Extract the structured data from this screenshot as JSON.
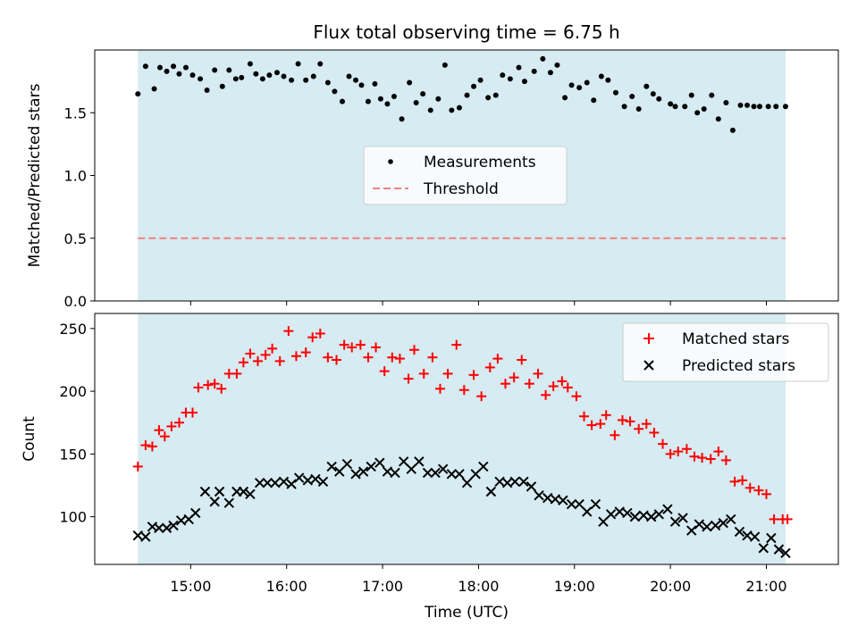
{
  "chart_data": [
    {
      "type": "scatter",
      "title": "Flux total observing time = 6.75 h",
      "xlabel": "",
      "ylabel": "Matched/Predicted stars",
      "xlim_hours": [
        14.0,
        21.75
      ],
      "ylim": [
        0.0,
        2.0
      ],
      "yticks": [
        0.0,
        0.5,
        1.0,
        1.5
      ],
      "ytick_labels": [
        "0.0",
        "0.5",
        "1.0",
        "1.5"
      ],
      "observing_window_hours": [
        14.45,
        21.2
      ],
      "shade_color": "#add8e6",
      "threshold": {
        "name": "Threshold",
        "value": 0.5,
        "color": "#f08080"
      },
      "series": [
        {
          "name": "Measurements",
          "color": "#000000",
          "x_hours": [
            14.45,
            14.53,
            14.62,
            14.68,
            14.75,
            14.82,
            14.88,
            14.95,
            15.02,
            15.1,
            15.17,
            15.25,
            15.33,
            15.4,
            15.47,
            15.53,
            15.62,
            15.68,
            15.75,
            15.82,
            15.9,
            15.97,
            16.05,
            16.12,
            16.2,
            16.28,
            16.35,
            16.43,
            16.5,
            16.58,
            16.65,
            16.72,
            16.78,
            16.85,
            16.92,
            16.98,
            17.05,
            17.12,
            17.2,
            17.28,
            17.35,
            17.42,
            17.5,
            17.58,
            17.65,
            17.72,
            17.8,
            17.88,
            17.95,
            18.02,
            18.1,
            18.18,
            18.25,
            18.33,
            18.42,
            18.48,
            18.58,
            18.67,
            18.75,
            18.82,
            18.9,
            18.97,
            19.05,
            19.13,
            19.2,
            19.28,
            19.35,
            19.43,
            19.52,
            19.6,
            19.67,
            19.75,
            19.82,
            19.88,
            20.0,
            20.05,
            20.15,
            20.22,
            20.28,
            20.35,
            20.43,
            20.5,
            20.58,
            20.65,
            20.73,
            20.8,
            20.87,
            20.93,
            21.02,
            21.1,
            21.2
          ],
          "y": [
            1.65,
            1.87,
            1.69,
            1.86,
            1.83,
            1.87,
            1.81,
            1.86,
            1.8,
            1.77,
            1.68,
            1.84,
            1.71,
            1.84,
            1.77,
            1.78,
            1.89,
            1.81,
            1.77,
            1.8,
            1.82,
            1.79,
            1.76,
            1.89,
            1.76,
            1.79,
            1.89,
            1.74,
            1.67,
            1.59,
            1.79,
            1.76,
            1.72,
            1.59,
            1.73,
            1.61,
            1.57,
            1.63,
            1.45,
            1.74,
            1.58,
            1.65,
            1.52,
            1.61,
            1.88,
            1.52,
            1.54,
            1.64,
            1.71,
            1.76,
            1.62,
            1.64,
            1.8,
            1.77,
            1.86,
            1.75,
            1.83,
            1.93,
            1.82,
            1.88,
            1.62,
            1.72,
            1.7,
            1.74,
            1.6,
            1.79,
            1.76,
            1.66,
            1.55,
            1.63,
            1.53,
            1.71,
            1.65,
            1.61,
            1.57,
            1.55,
            1.55,
            1.64,
            1.5,
            1.53,
            1.64,
            1.45,
            1.58,
            1.36,
            1.56,
            1.56,
            1.55,
            1.55,
            1.55,
            1.55,
            1.55
          ]
        }
      ]
    },
    {
      "type": "scatter",
      "title": "",
      "xlabel": "Time (UTC)",
      "ylabel": "Count",
      "xlim_hours": [
        14.0,
        21.75
      ],
      "ylim": [
        62,
        262
      ],
      "yticks": [
        100,
        150,
        200,
        250
      ],
      "ytick_labels": [
        "100",
        "150",
        "200",
        "250"
      ],
      "xticks_hours": [
        15,
        16,
        17,
        18,
        19,
        20,
        21
      ],
      "xtick_labels": [
        "15:00",
        "16:00",
        "17:00",
        "18:00",
        "19:00",
        "20:00",
        "21:00"
      ],
      "observing_window_hours": [
        14.45,
        21.2
      ],
      "shade_color": "#add8e6",
      "series": [
        {
          "name": "Matched stars",
          "marker": "plus",
          "color": "#ff0000",
          "x_hours": [
            14.45,
            14.53,
            14.6,
            14.67,
            14.73,
            14.8,
            14.88,
            14.95,
            15.02,
            15.08,
            15.18,
            15.25,
            15.32,
            15.4,
            15.48,
            15.55,
            15.62,
            15.7,
            15.78,
            15.85,
            15.93,
            16.02,
            16.1,
            16.2,
            16.27,
            16.35,
            16.43,
            16.52,
            16.6,
            16.68,
            16.77,
            16.85,
            16.93,
            17.02,
            17.1,
            17.18,
            17.27,
            17.33,
            17.43,
            17.52,
            17.6,
            17.68,
            17.77,
            17.85,
            17.95,
            18.03,
            18.12,
            18.2,
            18.28,
            18.37,
            18.45,
            18.53,
            18.62,
            18.7,
            18.78,
            18.87,
            18.93,
            19.02,
            19.1,
            19.18,
            19.27,
            19.33,
            19.42,
            19.5,
            19.58,
            19.67,
            19.75,
            19.83,
            19.92,
            20.0,
            20.08,
            20.17,
            20.25,
            20.33,
            20.42,
            20.5,
            20.58,
            20.67,
            20.75,
            20.83,
            20.92,
            21.0,
            21.08,
            21.17,
            21.22
          ],
          "y": [
            140,
            157,
            156,
            169,
            164,
            172,
            175,
            183,
            183,
            203,
            205,
            206,
            202,
            214,
            214,
            223,
            230,
            224,
            229,
            234,
            224,
            248,
            228,
            231,
            243,
            246,
            227,
            225,
            237,
            235,
            237,
            227,
            235,
            216,
            227,
            226,
            210,
            233,
            214,
            227,
            202,
            214,
            237,
            201,
            213,
            196,
            219,
            226,
            206,
            211,
            225,
            206,
            214,
            197,
            204,
            208,
            203,
            196,
            180,
            173,
            174,
            181,
            165,
            177,
            176,
            170,
            174,
            167,
            158,
            150,
            152,
            154,
            148,
            147,
            146,
            152,
            145,
            128,
            129,
            123,
            121,
            118,
            98,
            98,
            98
          ]
        },
        {
          "name": "Predicted stars",
          "marker": "x",
          "color": "#000000",
          "x_hours": [
            14.45,
            14.53,
            14.6,
            14.67,
            14.75,
            14.82,
            14.9,
            14.98,
            15.05,
            15.15,
            15.25,
            15.3,
            15.4,
            15.48,
            15.55,
            15.62,
            15.72,
            15.8,
            15.88,
            15.97,
            16.05,
            16.13,
            16.22,
            16.3,
            16.38,
            16.47,
            16.55,
            16.63,
            16.72,
            16.8,
            16.88,
            16.97,
            17.05,
            17.13,
            17.22,
            17.3,
            17.38,
            17.47,
            17.55,
            17.63,
            17.72,
            17.8,
            17.88,
            17.97,
            18.05,
            18.13,
            18.22,
            18.3,
            18.38,
            18.47,
            18.55,
            18.63,
            18.72,
            18.8,
            18.88,
            18.97,
            19.05,
            19.13,
            19.22,
            19.3,
            19.38,
            19.47,
            19.55,
            19.63,
            19.72,
            19.8,
            19.88,
            19.97,
            20.05,
            20.13,
            20.22,
            20.3,
            20.38,
            20.47,
            20.55,
            20.63,
            20.72,
            20.8,
            20.88,
            20.97,
            21.05,
            21.13,
            21.2
          ],
          "y": [
            85,
            84,
            92,
            91,
            91,
            93,
            97,
            98,
            103,
            120,
            112,
            120,
            111,
            120,
            120,
            118,
            127,
            127,
            127,
            128,
            126,
            131,
            129,
            130,
            128,
            140,
            136,
            142,
            134,
            136,
            140,
            143,
            136,
            135,
            144,
            138,
            144,
            135,
            135,
            138,
            134,
            134,
            127,
            134,
            140,
            120,
            128,
            127,
            128,
            128,
            124,
            117,
            115,
            114,
            113,
            110,
            110,
            104,
            110,
            96,
            102,
            104,
            103,
            100,
            101,
            100,
            102,
            106,
            96,
            99,
            89,
            94,
            92,
            93,
            95,
            98,
            88,
            85,
            84,
            75,
            83,
            74,
            71
          ]
        }
      ],
      "legend": [
        "Matched stars",
        "Predicted stars"
      ]
    }
  ],
  "legend_top": {
    "measurements_label": "Measurements",
    "threshold_label": "Threshold"
  }
}
